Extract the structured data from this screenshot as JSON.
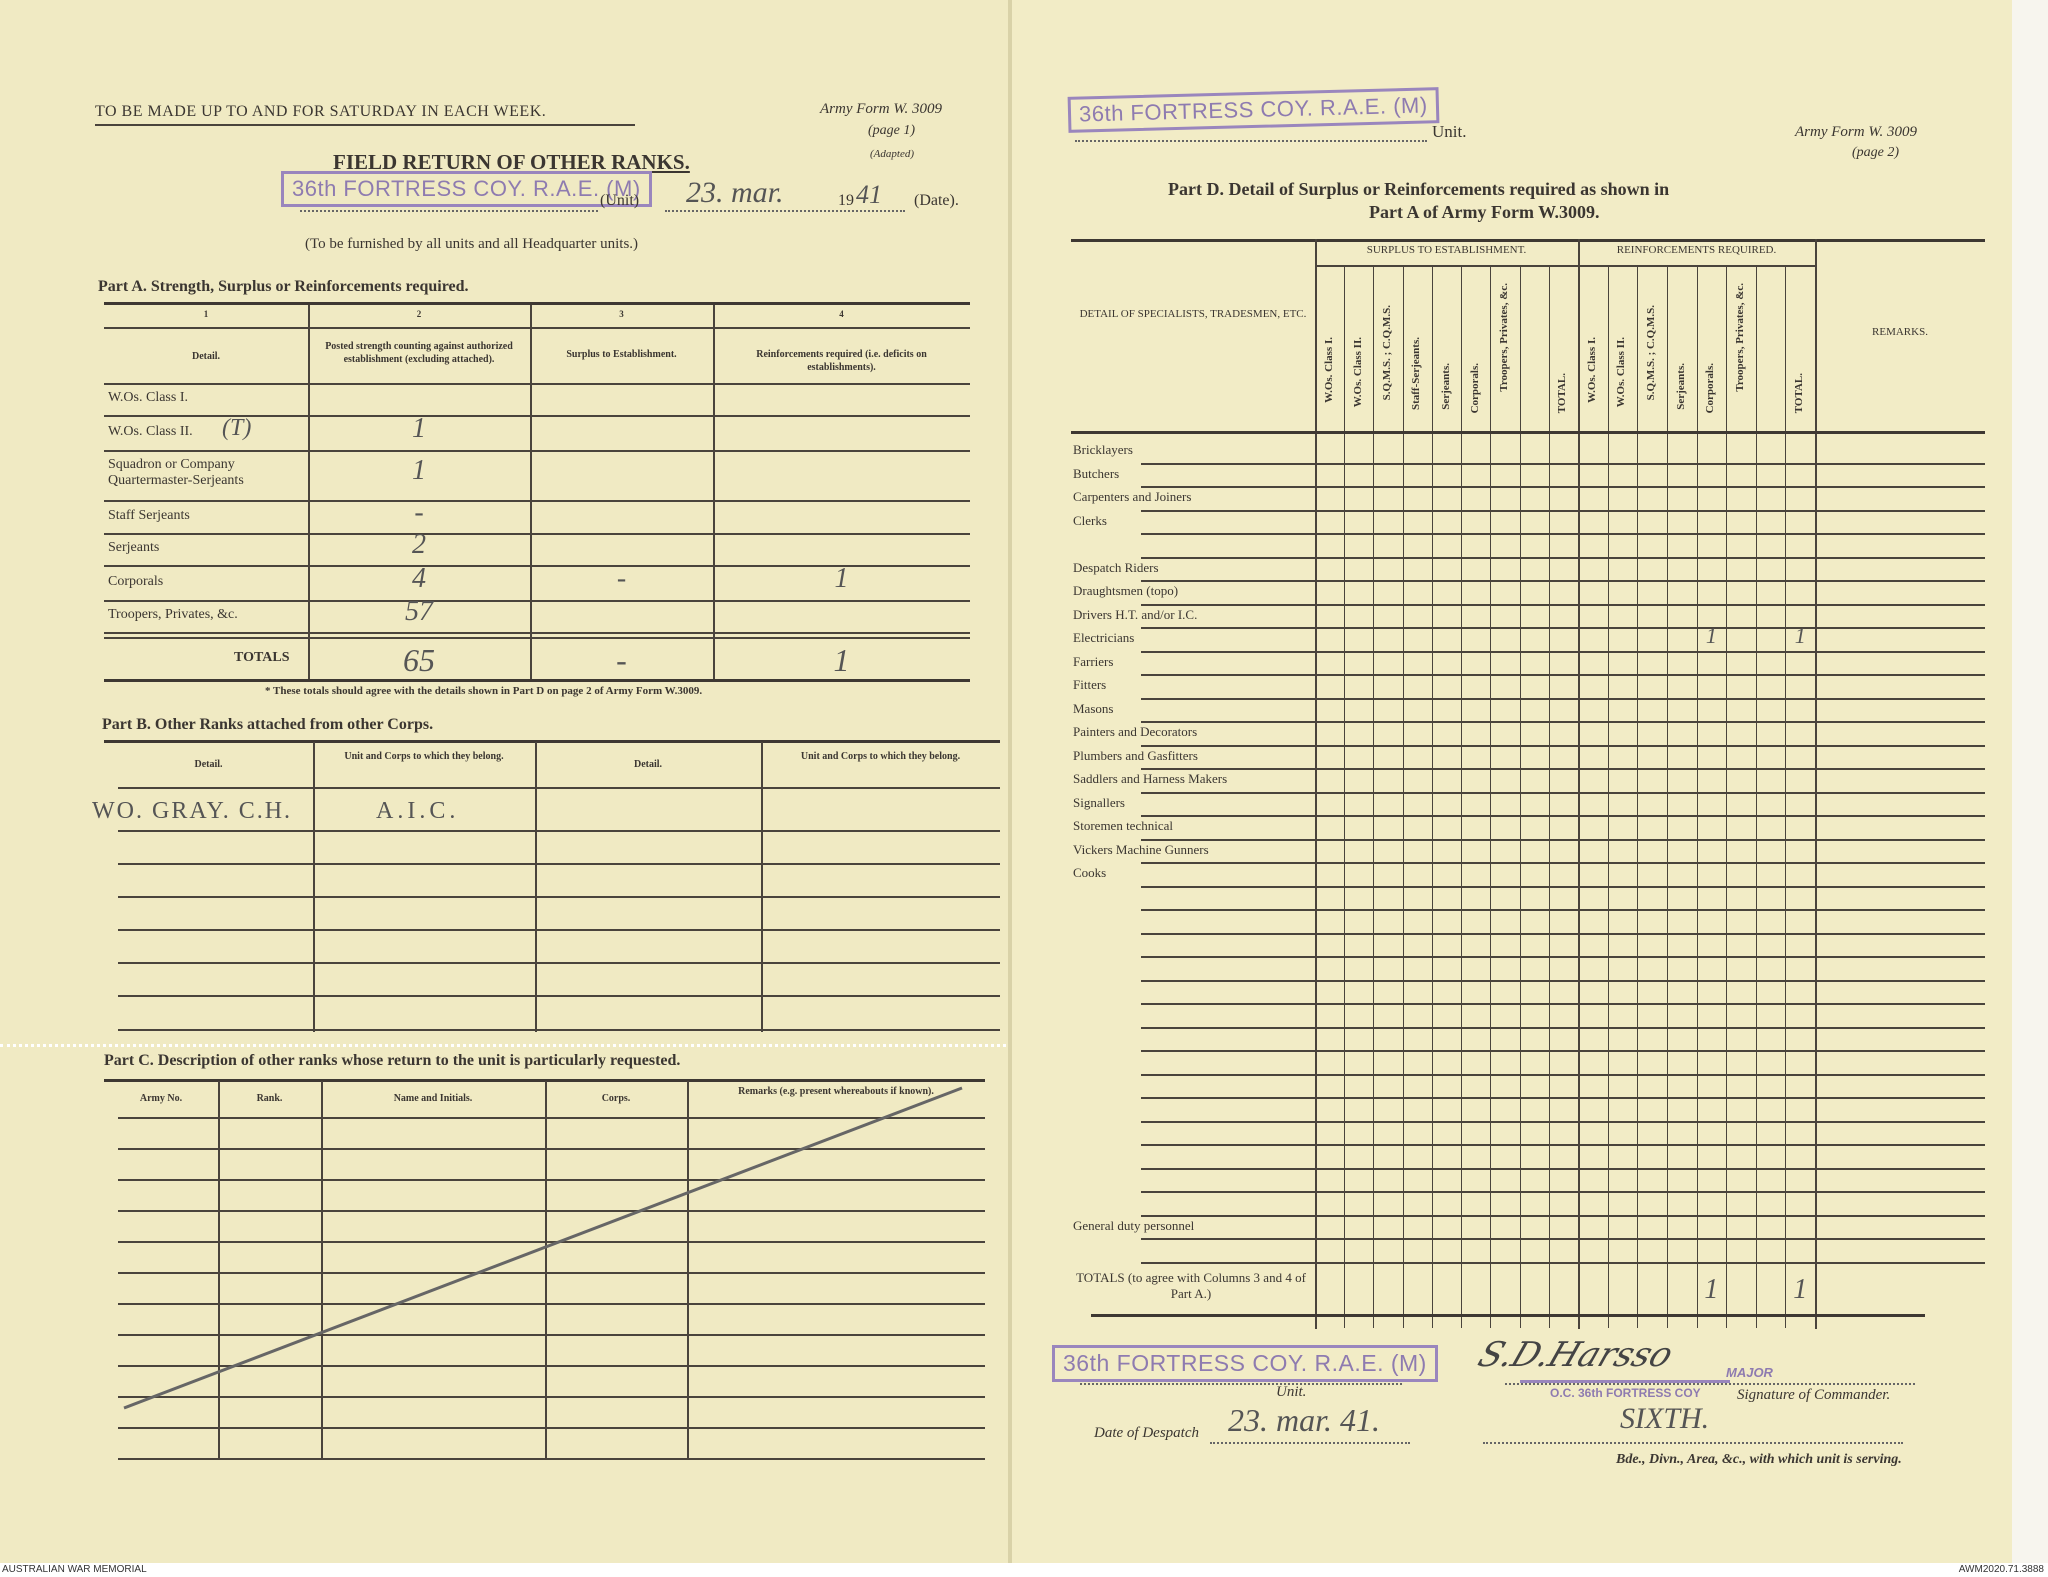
{
  "page1": {
    "instruction": "TO BE MADE UP TO AND FOR SATURDAY IN EACH WEEK.",
    "form_ref": "Army Form W. 3009",
    "page_label": "(page 1)",
    "adapted": "(Adapted)",
    "title": "FIELD RETURN OF OTHER RANKS.",
    "unit_stamp": "36th FORTRESS COY. R.A.E. (M)",
    "unit_label": "(Unit)",
    "date_handwritten": "23. mar.",
    "year_prefix": "19",
    "year_handwritten": "41",
    "date_label": "(Date).",
    "furnish_note": "(To be furnished by all units and all Headquarter units.)",
    "partA": {
      "heading": "Part A.  Strength, Surplus or Reinforcements required.",
      "col_numbers": [
        "1",
        "2",
        "3",
        "4"
      ],
      "headers": [
        "Detail.",
        "Posted strength counting against authorized establishment (excluding attached).",
        "Surplus to Establishment.",
        "Reinforcements required (i.e. deficits on establishments)."
      ],
      "rows": [
        {
          "detail": "W.Os. Class I.",
          "posted": "",
          "surplus": "",
          "reinf": ""
        },
        {
          "detail": "W.Os. Class II.",
          "note": "(T)",
          "posted": "1",
          "surplus": "",
          "reinf": ""
        },
        {
          "detail": "Squadron or Company Quartermaster-Serjeants",
          "posted": "1",
          "surplus": "",
          "reinf": ""
        },
        {
          "detail": "Staff Serjeants",
          "posted": "-",
          "surplus": "",
          "reinf": ""
        },
        {
          "detail": "Serjeants",
          "posted": "2",
          "surplus": "",
          "reinf": ""
        },
        {
          "detail": "Corporals",
          "posted": "4",
          "surplus": "-",
          "reinf": "1"
        },
        {
          "detail": "Troopers, Privates, &c.",
          "posted": "57",
          "surplus": "",
          "reinf": ""
        }
      ],
      "totals": {
        "label": "TOTALS",
        "posted": "65",
        "surplus": "-",
        "reinf": "1"
      },
      "footnote": "* These totals should agree with the details shown in Part D on page 2 of Army Form W.3009."
    },
    "partB": {
      "heading": "Part B.  Other Ranks attached from other Corps.",
      "headers": [
        "Detail.",
        "Unit and Corps to which they belong.",
        "Detail.",
        "Unit and Corps to which they belong."
      ],
      "entries": [
        {
          "detail": "WO. GRAY. C.H.",
          "unit": "A.I.C."
        }
      ]
    },
    "partC": {
      "heading": "Part C.  Description of other ranks whose return to the unit is particularly requested.",
      "headers": [
        "Army No.",
        "Rank.",
        "Name and Initials.",
        "Corps.",
        "Remarks (e.g. present whereabouts if known)."
      ]
    }
  },
  "page2": {
    "unit_stamp": "36th FORTRESS COY. R.A.E. (M)",
    "unit_label": "Unit.",
    "form_ref": "Army Form W. 3009",
    "page_label": "(page 2)",
    "title_line1": "Part D.  Detail of Surplus or Reinforcements required as shown in",
    "title_line2": "Part A of Army Form W.3009.",
    "detail_header": "DETAIL OF SPECIALISTS, TRADESMEN, ETC.",
    "surplus_header": "SURPLUS TO ESTABLISHMENT.",
    "reinf_header": "REINFORCEMENTS REQUIRED.",
    "remarks_header": "REMARKS.",
    "surplus_cols": [
      "W.Os. Class I.",
      "W.Os. Class II.",
      "S.Q.M.S. ; C.Q.M.S.",
      "Staff-Serjeants.",
      "Serjeants.",
      "Corporals.",
      "Troopers, Privates, &c.",
      "",
      "TOTAL."
    ],
    "reinf_cols": [
      "W.Os. Class I.",
      "W.Os. Class II.",
      "S.Q.M.S. ; C.Q.M.S.",
      "Serjeants.",
      "Corporals.",
      "Troopers, Privates, &c.",
      "",
      "TOTAL."
    ],
    "rows": [
      {
        "label": "Bricklayers"
      },
      {
        "label": "Butchers"
      },
      {
        "label": "Carpenters and Joiners"
      },
      {
        "label": "Clerks"
      },
      {
        "label": ""
      },
      {
        "label": "Despatch Riders"
      },
      {
        "label": "Draughtsmen (topo)"
      },
      {
        "label": "Drivers H.T. and/or I.C."
      },
      {
        "label": "Electricians",
        "reinf_corporals": "1",
        "reinf_total": "1"
      },
      {
        "label": "Farriers"
      },
      {
        "label": "Fitters"
      },
      {
        "label": "Masons"
      },
      {
        "label": "Painters and Decorators"
      },
      {
        "label": "Plumbers and Gasfitters"
      },
      {
        "label": "Saddlers and Harness Makers"
      },
      {
        "label": "Signallers"
      },
      {
        "label": "Storemen technical"
      },
      {
        "label": "Vickers Machine Gunners"
      },
      {
        "label": "Cooks"
      },
      {
        "label": ""
      },
      {
        "label": ""
      },
      {
        "label": ""
      },
      {
        "label": ""
      },
      {
        "label": ""
      },
      {
        "label": ""
      },
      {
        "label": ""
      },
      {
        "label": ""
      },
      {
        "label": ""
      },
      {
        "label": ""
      },
      {
        "label": ""
      },
      {
        "label": ""
      },
      {
        "label": ""
      },
      {
        "label": ""
      },
      {
        "label": "General duty personnel"
      },
      {
        "label": ""
      }
    ],
    "totals": {
      "label": "TOTALS (to agree with Columns 3 and 4 of Part A.)",
      "reinf_corporals": "1",
      "reinf_total": "1"
    },
    "footer": {
      "unit_stamp": "36th FORTRESS COY. R.A.E. (M)",
      "unit_label": "Unit.",
      "signature": "S.D.Harsso",
      "rank_stamp": "MAJOR",
      "oc_stamp": "O.C. 36th FORTRESS COY",
      "signature_label": "Signature of Commander.",
      "despatch_label": "Date of Despatch",
      "despatch_date": "23. mar. 41.",
      "formation": "SIXTH.",
      "formation_label": "Bde., Divn., Area, &c., with which unit is serving."
    }
  },
  "archive": {
    "left": "AUSTRALIAN WAR MEMORIAL",
    "right": "AWM2020.71.3888"
  },
  "colors": {
    "paper": "#f0eac3",
    "ink": "#3b3631",
    "stamp": "#8e7bb0",
    "pencil": "#555555"
  }
}
